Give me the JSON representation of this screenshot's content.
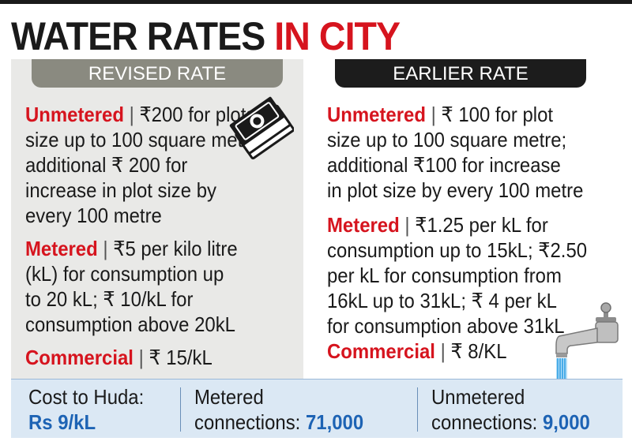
{
  "title": {
    "main": "WATER RATES ",
    "accent": "IN CITY"
  },
  "revised": {
    "tab": "REVISED RATE",
    "unmetered": {
      "label": "Unmetered",
      "sep": " | ",
      "l1": "₹200 for plots",
      "l2": "size up to 100 square metre;",
      "l3": "additional ₹ 200 for",
      "l4": "increase in plot size by",
      "l5": "every 100 metre"
    },
    "metered": {
      "label": "Metered",
      "sep": " | ",
      "l1": "₹5 per kilo litre",
      "l2": "(kL) for consumption up",
      "l3": "to 20 kL; ₹ 10/kL for",
      "l4": "consumption above 20kL"
    },
    "commercial": {
      "label": "Commercial",
      "sep": " | ",
      "l1": "₹ 15/kL"
    }
  },
  "earlier": {
    "tab": "EARLIER RATE",
    "unmetered": {
      "label": "Unmetered",
      "sep": " | ",
      "l1": "₹ 100 for plot",
      "l2": "size up to 100 square metre;",
      "l3": "additional ₹100 for increase",
      "l4": "in plot size by every 100 metre"
    },
    "metered": {
      "label": "Metered",
      "sep": " | ",
      "l1": "₹1.25 per kL for",
      "l2": "consumption up to 15kL; ₹2.50",
      "l3": "per kL for consumption from",
      "l4": "16kL up to 31kL; ₹ 4 per kL",
      "l5": "for consumption above 31kL"
    },
    "commercial": {
      "label": "Commercial",
      "sep": " | ",
      "l1": "₹ 8/KL"
    }
  },
  "summary": {
    "cost": {
      "label": "Cost to Huda:",
      "value": "Rs 9/kL"
    },
    "metered": {
      "label": "Metered",
      "prefix": "connections: ",
      "value": "71,000"
    },
    "unmetered": {
      "label": "Unmetered",
      "prefix": "connections: ",
      "value": "9,000"
    }
  },
  "colors": {
    "accent_red": "#d6141e",
    "value_blue": "#1d63b4",
    "revised_tab": "#8a8a80",
    "earlier_tab": "#1c1c1c",
    "strip_bg": "#dbe8f4"
  },
  "icons": [
    "money-stack-icon",
    "water-tap-icon"
  ]
}
